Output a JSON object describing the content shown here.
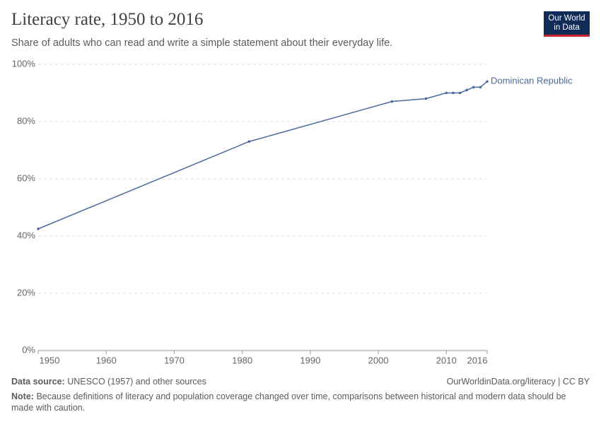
{
  "chart_data": {
    "type": "line",
    "title": "Literacy rate, 1950 to 2016",
    "subtitle": "Share of adults who can read and write a simple statement about their everyday life.",
    "x": [
      1950,
      1981,
      2002,
      2007,
      2010,
      2011,
      2012,
      2013,
      2014,
      2015,
      2016
    ],
    "series": [
      {
        "name": "Dominican Republic",
        "color": "#4c6a9c",
        "values": [
          42.5,
          73,
          87,
          88,
          90,
          90,
          90,
          91,
          92,
          92,
          94
        ]
      }
    ],
    "xlim": [
      1950,
      2016
    ],
    "xticks": [
      1950,
      1960,
      1970,
      1980,
      1990,
      2000,
      2010,
      2016
    ],
    "ylim": [
      0,
      100
    ],
    "yticks": [
      {
        "value": 0,
        "label": "0%"
      },
      {
        "value": 20,
        "label": "20%"
      },
      {
        "value": 40,
        "label": "40%"
      },
      {
        "value": 60,
        "label": "60%"
      },
      {
        "value": 80,
        "label": "80%"
      },
      {
        "value": 100,
        "label": "100%"
      }
    ],
    "grid": true
  },
  "logo": {
    "line1": "Our World",
    "line2": "in Data"
  },
  "footer": {
    "source_label": "Data source:",
    "source_text": "UNESCO (1957) and other sources",
    "url": "OurWorldinData.org/literacy | CC BY",
    "note_label": "Note:",
    "note_text": "Because definitions of literacy and population coverage changed over time, comparisons between historical and modern data should be made with caution."
  }
}
